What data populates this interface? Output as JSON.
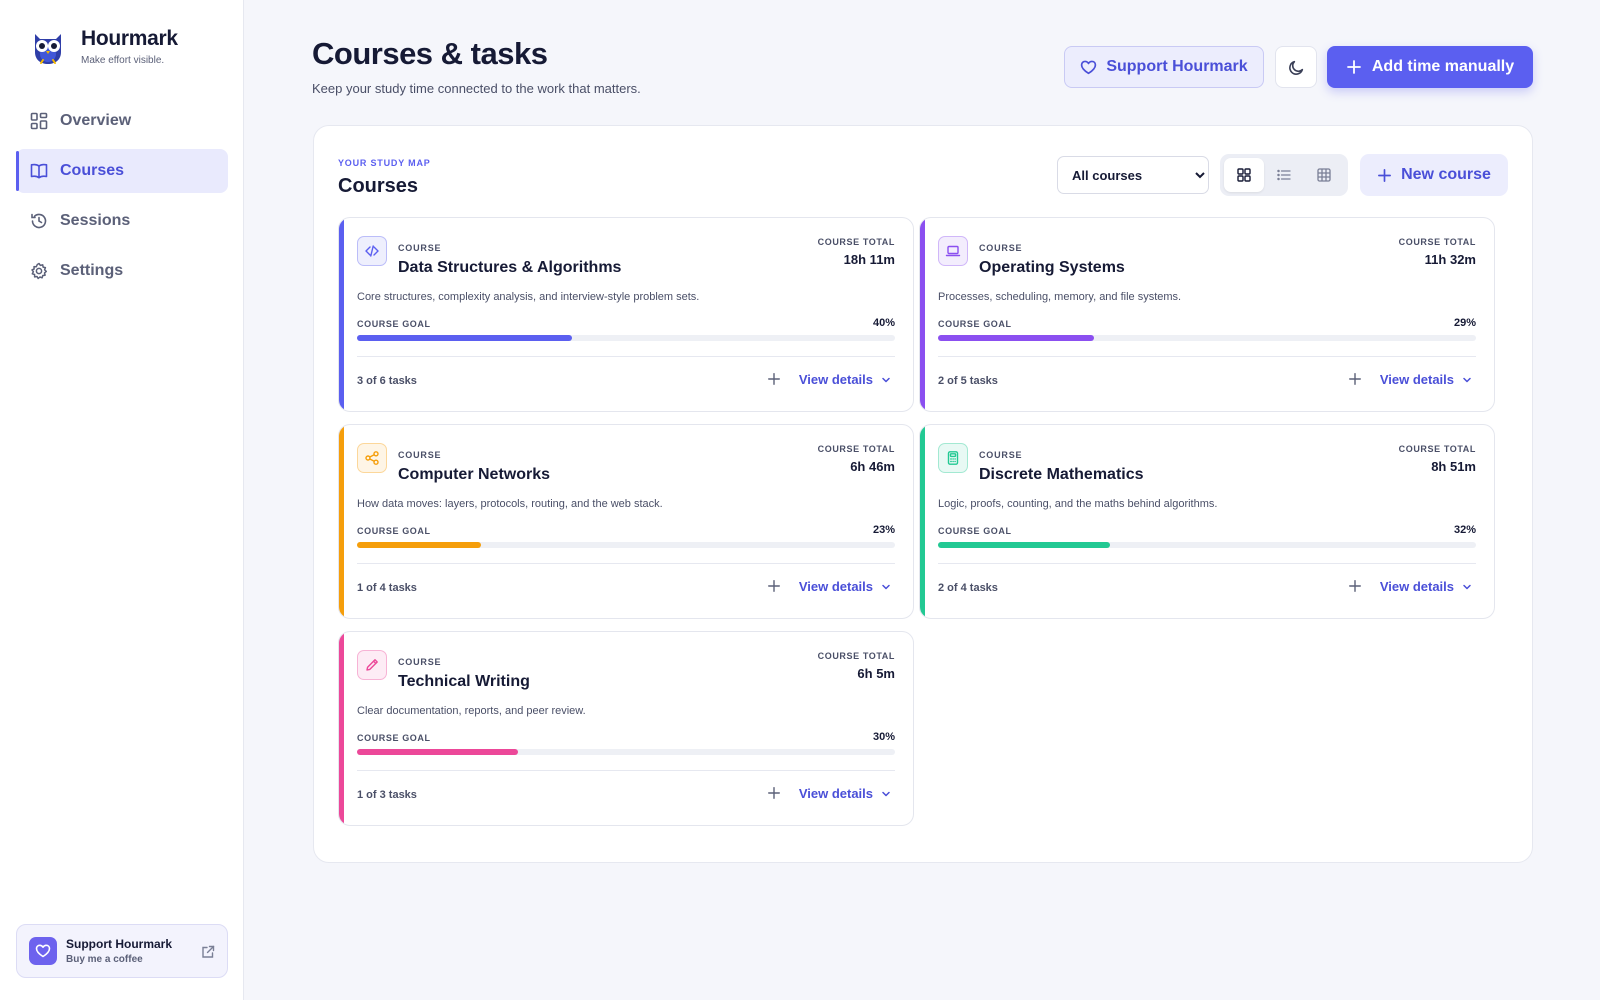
{
  "app": {
    "name": "Hourmark",
    "tagline": "Make effort visible."
  },
  "sidebar": {
    "items": [
      {
        "label": "Overview",
        "icon": "grid-icon"
      },
      {
        "label": "Courses",
        "icon": "book-icon",
        "active": true
      },
      {
        "label": "Sessions",
        "icon": "history-icon"
      },
      {
        "label": "Settings",
        "icon": "gear-icon"
      }
    ],
    "support": {
      "title": "Support Hourmark",
      "subtitle": "Buy me a coffee"
    }
  },
  "header": {
    "title": "Courses & tasks",
    "subtitle": "Keep your study time connected to the work that matters.",
    "support_label": "Support Hourmark",
    "add_label": "Add time manually"
  },
  "panel": {
    "eyebrow": "YOUR STUDY MAP",
    "title": "Courses",
    "filter": {
      "selected": "All courses",
      "options": [
        "All courses"
      ]
    },
    "new_course_label": "New course"
  },
  "card_labels": {
    "kicker": "COURSE",
    "total_label": "COURSE TOTAL",
    "goal_label": "COURSE GOAL",
    "view_details": "View details"
  },
  "courses": [
    {
      "name": "Data Structures & Algorithms",
      "total": "18h 11m",
      "description": "Core structures, complexity analysis, and interview-style problem sets.",
      "goal_pct": "40%",
      "goal_value": 0.4,
      "tasks": "3 of 6 tasks",
      "color": "#5b5ff0",
      "icon": "code-icon"
    },
    {
      "name": "Operating Systems",
      "total": "11h 32m",
      "description": "Processes, scheduling, memory, and file systems.",
      "goal_pct": "29%",
      "goal_value": 0.29,
      "tasks": "2 of 5 tasks",
      "color": "#8b4ff0",
      "icon": "laptop-icon"
    },
    {
      "name": "Computer Networks",
      "total": "6h 46m",
      "description": "How data moves: layers, protocols, routing, and the web stack.",
      "goal_pct": "23%",
      "goal_value": 0.23,
      "tasks": "1 of 4 tasks",
      "color": "#f59e0b",
      "icon": "share-icon"
    },
    {
      "name": "Discrete Mathematics",
      "total": "8h 51m",
      "description": "Logic, proofs, counting, and the maths behind algorithms.",
      "goal_pct": "32%",
      "goal_value": 0.32,
      "tasks": "2 of 4 tasks",
      "color": "#22c993",
      "icon": "calculator-icon"
    },
    {
      "name": "Technical Writing",
      "total": "6h 5m",
      "description": "Clear documentation, reports, and peer review.",
      "goal_pct": "30%",
      "goal_value": 0.3,
      "tasks": "1 of 3 tasks",
      "color": "#ec4899",
      "icon": "pencil-icon"
    }
  ]
}
